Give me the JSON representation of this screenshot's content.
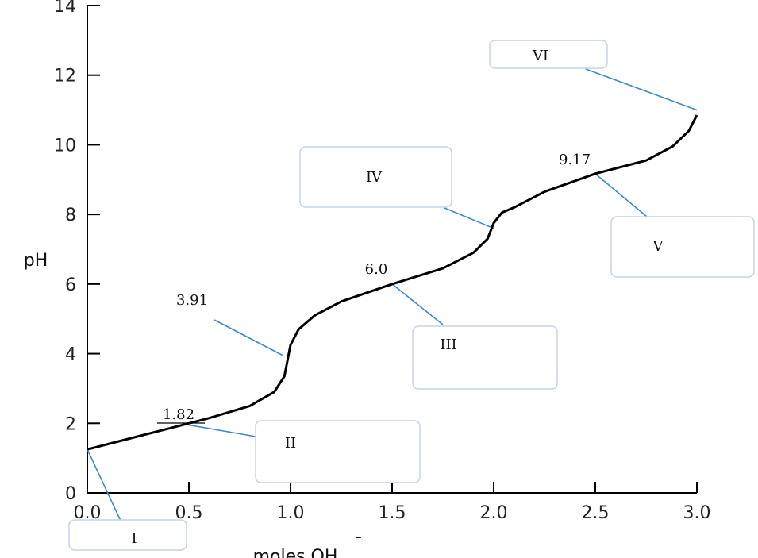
{
  "chart_data": {
    "type": "line",
    "xlabel": "moles OH",
    "xlabel_superscript": "-",
    "ylabel": "pH",
    "xlim": [
      0.0,
      3.0
    ],
    "ylim": [
      0,
      14
    ],
    "x_ticks": [
      "0.0",
      "0.5",
      "1.0",
      "1.5",
      "2.0",
      "2.5",
      "3.0"
    ],
    "y_ticks": [
      "0",
      "2",
      "4",
      "6",
      "8",
      "10",
      "12",
      "14"
    ],
    "grid": false,
    "series": [
      {
        "color": "#000000",
        "x": [
          0.0,
          0.2,
          0.4,
          0.6,
          0.8,
          0.92,
          0.97,
          1.0,
          1.04,
          1.12,
          1.25,
          1.5,
          1.75,
          1.9,
          1.97,
          2.0,
          2.04,
          2.1,
          2.25,
          2.5,
          2.75,
          2.88,
          2.96,
          3.0
        ],
        "y": [
          1.25,
          1.55,
          1.85,
          2.15,
          2.5,
          2.9,
          3.35,
          4.25,
          4.7,
          5.1,
          5.5,
          6.0,
          6.45,
          6.9,
          7.3,
          7.75,
          8.05,
          8.2,
          8.65,
          9.17,
          9.55,
          9.95,
          10.4,
          10.85
        ]
      }
    ],
    "annotations": [
      {
        "text": "1.82",
        "x": 0.5,
        "y": 1.95
      },
      {
        "text": "3.91",
        "x": 0.96,
        "y": 3.91
      },
      {
        "text": "6.0",
        "x": 1.5,
        "y": 6.0
      },
      {
        "text": "9.17",
        "x": 2.5,
        "y": 9.17
      }
    ],
    "label_boxes": [
      {
        "label": "I",
        "target_x": 0.0,
        "target_y": 1.25
      },
      {
        "label": "II",
        "target_x": 0.5,
        "target_y": 1.95
      },
      {
        "label": "III",
        "target_x": 1.5,
        "target_y": 6.0
      },
      {
        "label": "IV",
        "target_x": 2.0,
        "target_y": 7.6
      },
      {
        "label": "V",
        "target_x": 2.5,
        "target_y": 9.17
      },
      {
        "label": "VI",
        "target_x": 3.0,
        "target_y": 11.0
      }
    ]
  }
}
